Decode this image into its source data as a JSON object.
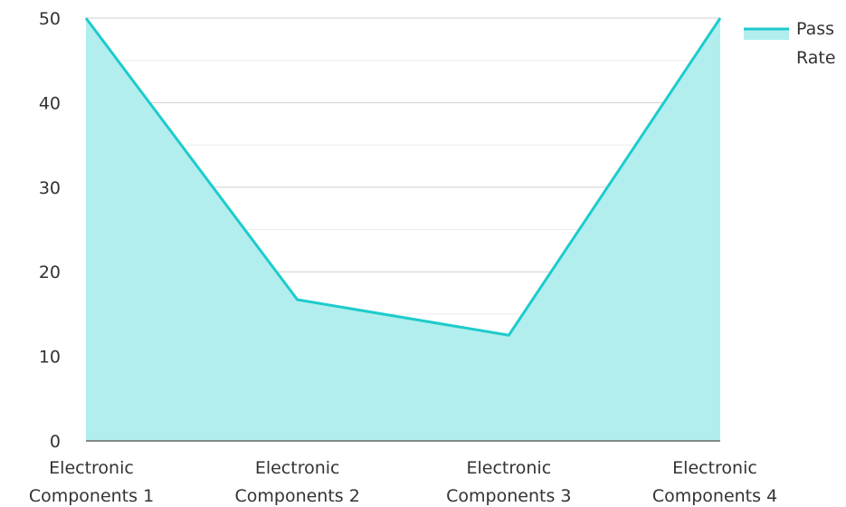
{
  "chart_data": {
    "type": "area",
    "categories": [
      [
        "Electronic",
        "Components 1"
      ],
      [
        "Electronic",
        "Components 2"
      ],
      [
        "Electronic",
        "Components 3"
      ],
      [
        "Electronic",
        "Components 4"
      ]
    ],
    "series": [
      {
        "name": "Pass Rate",
        "name_lines": [
          "Pass",
          "Rate"
        ],
        "values": [
          50,
          16.7,
          12.5,
          50
        ]
      }
    ],
    "yticks": [
      0,
      10,
      20,
      30,
      40,
      50
    ],
    "ylim": [
      0,
      50
    ],
    "grid": true,
    "legend_position": "top-right",
    "title": "",
    "xlabel": "",
    "ylabel": ""
  },
  "colors": {
    "line": "#1ecbcb",
    "fill": "#b2eeee",
    "grid_major": "#cfcfcf",
    "grid_minor": "#ebebeb",
    "axis": "#666666"
  }
}
